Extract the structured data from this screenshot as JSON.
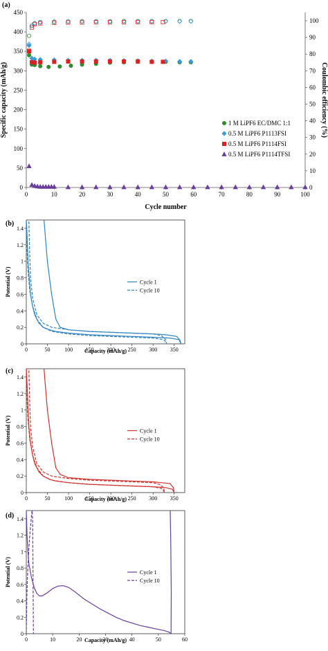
{
  "chart_data": [
    {
      "panel_label": "(a)",
      "type": "scatter",
      "xlabel": "Cycle number",
      "ylabel": "Specific capacity (mAh/g)",
      "y2label": "Coulombic efficiency (%)",
      "xlim": [
        0,
        100
      ],
      "ylim": [
        0,
        450
      ],
      "y2lim": [
        0,
        105
      ],
      "x_ticks": [
        0,
        10,
        20,
        30,
        40,
        50,
        60,
        70,
        80,
        90,
        100
      ],
      "y_ticks": [
        0,
        50,
        100,
        150,
        200,
        250,
        300,
        350,
        400,
        450
      ],
      "y2_ticks": [
        0,
        10,
        20,
        30,
        40,
        50,
        60,
        70,
        80,
        90,
        100
      ],
      "grid": false,
      "legend_position": "right-middle",
      "series": [
        {
          "name": "1 M LiPF6 EC/DMC 1:1",
          "color": "#2e8b2e",
          "marker": "circle",
          "capacity_x": [
            1,
            2,
            3,
            5,
            8,
            12,
            16,
            20,
            25,
            30,
            35,
            40,
            45,
            50,
            55,
            59
          ],
          "capacity_y": [
            340,
            316,
            315,
            312,
            310,
            311,
            313,
            316,
            318,
            321,
            322,
            323,
            323,
            323,
            322,
            322
          ],
          "efficiency_x": [
            1,
            2,
            3,
            5,
            10,
            15,
            20,
            25,
            30,
            35,
            40,
            45,
            50,
            55,
            59
          ],
          "efficiency_y": [
            91,
            97,
            98.5,
            99.2,
            99.5,
            99.6,
            99.7,
            99.7,
            99.7,
            99.8,
            99.8,
            99.8,
            99.8,
            99.8,
            99.8
          ]
        },
        {
          "name": "0.5 M LiPF6 P1113FSI",
          "color": "#3a9ad9",
          "marker": "diamond",
          "capacity_x": [
            1,
            2,
            3,
            5,
            10,
            15,
            20,
            25,
            30,
            35,
            40,
            45,
            50,
            55,
            59
          ],
          "capacity_y": [
            365,
            332,
            330,
            329,
            328,
            327,
            327,
            327,
            327,
            326,
            326,
            325,
            325,
            324,
            324
          ],
          "efficiency_x": [
            1,
            2,
            3,
            5,
            10,
            15,
            20,
            25,
            30,
            35,
            40,
            45,
            50,
            55,
            59
          ],
          "efficiency_y": [
            86,
            97,
            98.5,
            99,
            99.3,
            99.5,
            99.6,
            99.6,
            99.6,
            99.7,
            99.7,
            99.7,
            99.7,
            99.7,
            99.7
          ]
        },
        {
          "name": "0.5 M LiPF6 P1114FSI",
          "color": "#e02020",
          "marker": "square",
          "capacity_x": [
            1,
            2,
            3,
            5,
            10,
            15,
            20,
            25,
            30,
            35,
            40,
            45,
            49
          ],
          "capacity_y": [
            350,
            322,
            321,
            322,
            323,
            324,
            324,
            324,
            324,
            324,
            324,
            323,
            323
          ],
          "efficiency_x": [
            1,
            2,
            3,
            5,
            10,
            15,
            20,
            25,
            30,
            35,
            40,
            45,
            49
          ],
          "efficiency_y": [
            82,
            96,
            98,
            98.5,
            98.8,
            99,
            99,
            99.1,
            99.1,
            99.1,
            99.2,
            99.2,
            99.2
          ]
        },
        {
          "name": "0.5 M LiPF6 P1114TFSI",
          "color": "#6a3d9a",
          "marker": "triangle",
          "capacity_x": [
            1,
            2,
            3,
            4,
            5,
            6,
            7,
            8,
            9,
            10,
            15,
            20,
            25,
            30,
            35,
            40,
            45,
            50,
            55,
            60,
            65,
            70,
            75,
            80,
            85,
            90,
            95,
            100
          ],
          "capacity_y": [
            55,
            7,
            4,
            3,
            2,
            2,
            2,
            2,
            2,
            2,
            1,
            1,
            1,
            1,
            1,
            1,
            1,
            1,
            1,
            1,
            1,
            1,
            1,
            1,
            1,
            1,
            1,
            1
          ]
        }
      ]
    },
    {
      "panel_label": "(b)",
      "type": "line",
      "xlabel": "Capacity (mAh/g)",
      "ylabel": "Potential (V)",
      "xlim": [
        0,
        375
      ],
      "ylim": [
        0,
        1.5
      ],
      "x_ticks": [
        0,
        50,
        100,
        150,
        200,
        250,
        300,
        350
      ],
      "y_ticks": [
        0,
        0.2,
        0.4,
        0.6,
        0.8,
        1.0,
        1.2,
        1.4
      ],
      "grid": false,
      "legend_position": "right-middle",
      "color": "#2f84c0",
      "series": [
        {
          "name": "Cycle 1",
          "dash": "solid",
          "x": [
            0,
            2,
            4,
            6,
            10,
            15,
            20,
            30,
            40,
            55,
            70,
            100,
            150,
            200,
            250,
            300,
            340,
            362,
            364,
            366,
            364,
            356,
            330,
            300,
            250,
            200,
            150,
            100,
            80,
            70,
            60,
            50,
            45,
            42
          ],
          "y": [
            1.5,
            1.3,
            1.0,
            0.85,
            0.6,
            0.45,
            0.35,
            0.25,
            0.2,
            0.17,
            0.15,
            0.13,
            0.11,
            0.1,
            0.09,
            0.08,
            0.07,
            0.05,
            0.02,
            0.0,
            0.04,
            0.09,
            0.11,
            0.12,
            0.13,
            0.14,
            0.15,
            0.17,
            0.2,
            0.3,
            0.6,
            1.0,
            1.3,
            1.5
          ]
        },
        {
          "name": "Cycle 10",
          "dash": "dashed",
          "x": [
            0,
            2,
            4,
            8,
            15,
            25,
            40,
            60,
            100,
            150,
            200,
            250,
            300,
            325,
            330,
            332,
            330,
            320,
            300,
            250,
            200,
            150,
            100,
            60,
            40,
            25,
            15,
            10,
            8,
            6
          ],
          "y": [
            1.5,
            1.1,
            0.9,
            0.65,
            0.45,
            0.3,
            0.2,
            0.15,
            0.12,
            0.1,
            0.09,
            0.08,
            0.07,
            0.05,
            0.02,
            0.0,
            0.05,
            0.1,
            0.12,
            0.13,
            0.14,
            0.15,
            0.17,
            0.2,
            0.25,
            0.35,
            0.55,
            0.8,
            1.1,
            1.5
          ]
        }
      ]
    },
    {
      "panel_label": "(c)",
      "type": "line",
      "xlabel": "Capacity (mAh/g)",
      "ylabel": "Potential (V)",
      "xlim": [
        0,
        375
      ],
      "ylim": [
        0,
        1.5
      ],
      "x_ticks": [
        0,
        50,
        100,
        150,
        200,
        250,
        300,
        350
      ],
      "y_ticks": [
        0,
        0.2,
        0.4,
        0.6,
        0.8,
        1.0,
        1.2,
        1.4
      ],
      "grid": false,
      "legend_position": "right-middle",
      "color": "#d0312d",
      "series": [
        {
          "name": "Cycle 1",
          "dash": "solid",
          "x": [
            0,
            2,
            4,
            6,
            10,
            15,
            20,
            30,
            40,
            55,
            70,
            100,
            150,
            200,
            250,
            300,
            330,
            345,
            348,
            350,
            348,
            340,
            320,
            300,
            250,
            200,
            150,
            100,
            80,
            70,
            60,
            50,
            45,
            42
          ],
          "y": [
            1.5,
            1.3,
            1.0,
            0.8,
            0.6,
            0.45,
            0.35,
            0.25,
            0.2,
            0.16,
            0.14,
            0.12,
            0.1,
            0.09,
            0.08,
            0.07,
            0.06,
            0.04,
            0.02,
            0.0,
            0.06,
            0.11,
            0.12,
            0.13,
            0.14,
            0.15,
            0.16,
            0.18,
            0.22,
            0.3,
            0.6,
            1.0,
            1.3,
            1.5
          ]
        },
        {
          "name": "Cycle 10",
          "dash": "dashed",
          "x": [
            0,
            2,
            4,
            8,
            15,
            25,
            40,
            60,
            100,
            150,
            200,
            250,
            300,
            320,
            325,
            327,
            325,
            315,
            300,
            250,
            200,
            150,
            100,
            60,
            40,
            25,
            15,
            10,
            8,
            6
          ],
          "y": [
            1.5,
            1.1,
            0.9,
            0.65,
            0.45,
            0.3,
            0.2,
            0.15,
            0.12,
            0.1,
            0.09,
            0.08,
            0.07,
            0.05,
            0.02,
            0.0,
            0.06,
            0.1,
            0.12,
            0.13,
            0.14,
            0.15,
            0.17,
            0.2,
            0.25,
            0.35,
            0.55,
            0.8,
            1.1,
            1.5
          ]
        }
      ]
    },
    {
      "panel_label": "(d)",
      "type": "line",
      "xlabel": "Capacity (mAh/g)",
      "ylabel": "Potential (V)",
      "xlim": [
        0,
        60
      ],
      "ylim": [
        0,
        1.5
      ],
      "x_ticks": [
        0,
        10,
        20,
        30,
        40,
        50,
        60
      ],
      "y_ticks": [
        0,
        0.2,
        0.4,
        0.6,
        0.8,
        1.0,
        1.2,
        1.4
      ],
      "grid": false,
      "legend_position": "right-middle",
      "color": "#6a3d9a",
      "series": [
        {
          "name": "Cycle 1",
          "dash": "solid",
          "x": [
            0,
            0.3,
            0.6,
            1,
            2,
            3,
            4,
            5,
            6,
            8,
            10,
            12,
            14,
            16,
            18,
            20,
            22,
            25,
            28,
            31,
            34,
            37,
            40,
            43,
            46,
            49,
            52,
            54,
            54.8,
            54.9,
            54.7,
            54.5
          ],
          "y": [
            1.5,
            1.2,
            1.0,
            0.85,
            0.68,
            0.56,
            0.49,
            0.46,
            0.46,
            0.5,
            0.55,
            0.58,
            0.585,
            0.565,
            0.52,
            0.47,
            0.42,
            0.36,
            0.3,
            0.25,
            0.2,
            0.16,
            0.13,
            0.1,
            0.08,
            0.06,
            0.04,
            0.02,
            0.0,
            0.5,
            1.1,
            1.5
          ]
        },
        {
          "name": "Cycle 10",
          "dash": "dashed",
          "x": [
            0,
            0.2,
            0.5,
            1,
            1.3,
            1.6,
            1.8,
            2.0,
            2.2,
            2.4,
            2.5,
            2.6,
            2.7
          ],
          "y": [
            0.0,
            0.45,
            0.75,
            1.05,
            1.2,
            1.3,
            1.38,
            1.45,
            1.5,
            1.4,
            1.0,
            0.5,
            0.0
          ]
        }
      ]
    }
  ]
}
